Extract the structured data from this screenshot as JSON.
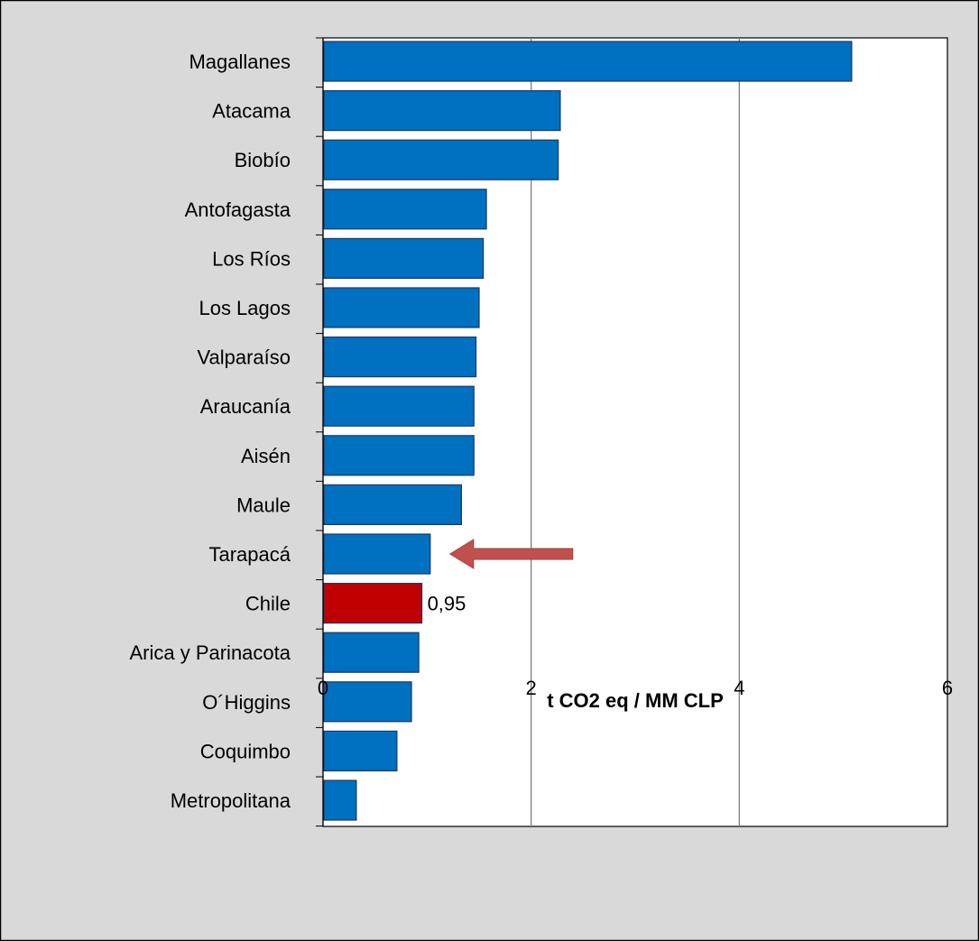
{
  "chart_data": {
    "type": "bar",
    "orientation": "horizontal",
    "categories": [
      "Magallanes",
      "Atacama",
      "Biobío",
      "Antofagasta",
      "Los Ríos",
      "Los Lagos",
      "Valparaíso",
      "Araucanía",
      "Aisén",
      "Maule",
      "Tarapacá",
      "Chile",
      "Arica y Parinacota",
      "O´Higgins",
      "Coquimbo",
      "Metropolitana"
    ],
    "values": [
      5.08,
      2.28,
      2.26,
      1.57,
      1.54,
      1.5,
      1.47,
      1.45,
      1.45,
      1.33,
      1.03,
      0.95,
      0.92,
      0.85,
      0.71,
      0.32
    ],
    "highlight_category": "Chile",
    "data_labels": {
      "Chile": "0,95"
    },
    "xlabel": "t CO2 eq / MM CLP",
    "ylabel": "",
    "title": "",
    "xlim": [
      0,
      6
    ],
    "xticks": [
      0,
      2,
      4,
      6
    ],
    "xtick_labels": [
      "0",
      "2",
      "4",
      "6"
    ],
    "grid": "vertical major gridlines",
    "legend": "none",
    "annotation": "red arrow pointing left at Tarapacá bar"
  },
  "colors": {
    "background": "#d9d9d9",
    "plot_area": "#ffffff",
    "bar": "#0070c0",
    "bar_edge": "#1f3864",
    "highlight": "#c00000",
    "arrow": "#c0504d",
    "grid": "#7f7f7f"
  }
}
